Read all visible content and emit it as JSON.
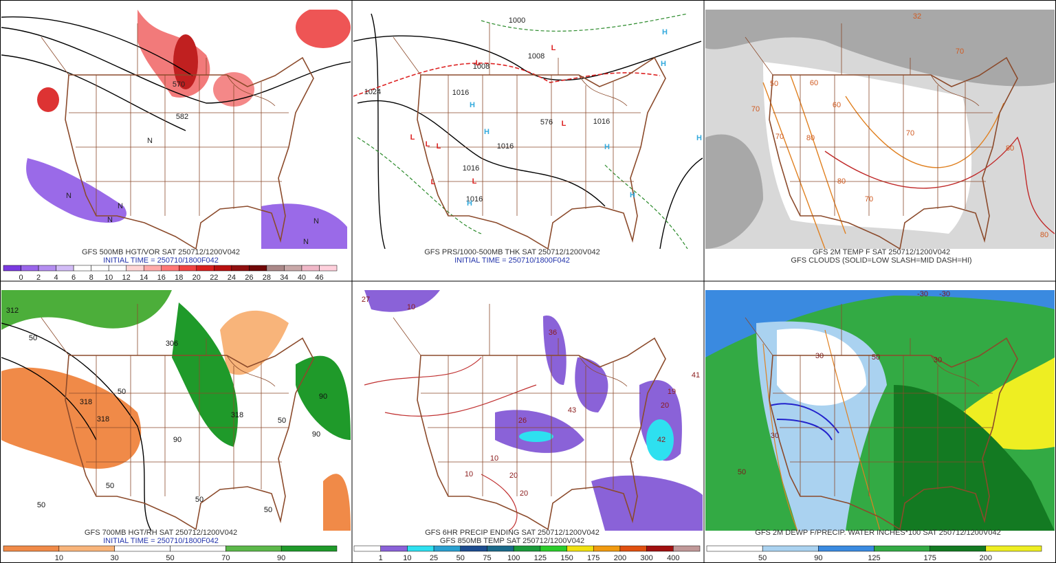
{
  "panels": [
    {
      "captions": [
        "GFS 500MB HGT/VOR SAT 250712/1200V042",
        "INITIAL TIME = 250710/1800F042"
      ],
      "colorbar": {
        "labels": [
          "0",
          "2",
          "4",
          "6",
          "8",
          "10",
          "12",
          "14",
          "16",
          "18",
          "20",
          "22",
          "24",
          "26",
          "28",
          "34",
          "40",
          "46"
        ],
        "colors": [
          "#7a3ae0",
          "#9a66ea",
          "#b48ef0",
          "#d2bcf6",
          "#ffffff",
          "#ffffff",
          "#ffffff",
          "#ffd6d6",
          "#ffaaaa",
          "#ff7777",
          "#f04444",
          "#d82020",
          "#b81010",
          "#901010",
          "#700808",
          "#aa8888",
          "#c8a8a8",
          "#f0b8c8",
          "#ffd0dc"
        ]
      },
      "map_labels": [
        "570",
        "582",
        "N",
        "N",
        "N",
        "N",
        "N",
        "N"
      ]
    },
    {
      "captions": [
        "GFS PRS/1000-500MB THK SAT 250712/1200V042",
        "INITIAL TIME = 250710/1800F042"
      ],
      "map_labels": [
        "1000",
        "1008",
        "1008",
        "1024",
        "1016",
        "1016",
        "1016",
        "1016",
        "1016",
        "576",
        "H",
        "H",
        "H",
        "H",
        "H",
        "H",
        "H",
        "H",
        "L",
        "L",
        "L",
        "L",
        "L",
        "L",
        "L",
        "L"
      ]
    },
    {
      "captions": [
        "GFS 2M TEMP F SAT 250712/1200V042",
        "GFS CLOUDS (SOLID=LOW SLASH=MID DASH=HI)"
      ],
      "map_labels": [
        "50",
        "60",
        "60",
        "70",
        "70",
        "80",
        "70",
        "80",
        "70",
        "80",
        "80",
        "70",
        "32"
      ]
    },
    {
      "captions": [
        "GFS 700MB HGT/RH SAT 250712/1200V042",
        "INITIAL TIME = 250710/1800F042"
      ],
      "colorbar": {
        "labels": [
          "10",
          "30",
          "50",
          "70",
          "90"
        ],
        "colors": [
          "#f08a48",
          "#f8b47a",
          "#ffffff",
          "#ffffff",
          "#5cb84a",
          "#1f9a2a"
        ]
      },
      "map_labels": [
        "312",
        "50",
        "306",
        "318",
        "318",
        "50",
        "318",
        "50",
        "90",
        "90",
        "90",
        "50",
        "50",
        "50",
        "50"
      ]
    },
    {
      "captions": [
        "GFS 6HR PRECIP ENDING SAT 250712/1200V042",
        "GFS 850MB TEMP SAT 250712/1200V042"
      ],
      "colorbar": {
        "labels": [
          "1",
          "10",
          "25",
          "50",
          "75",
          "100",
          "125",
          "150",
          "175",
          "200",
          "300",
          "400"
        ],
        "colors": [
          "#ffffff",
          "#8a62d8",
          "#2ee0f0",
          "#2aa0d0",
          "#1c4c90",
          "#1a6a8a",
          "#1a9a3a",
          "#2acc2a",
          "#f0e010",
          "#f09a10",
          "#e05010",
          "#a01010",
          "#c09898"
        ]
      },
      "map_labels": [
        "27",
        "10",
        "36",
        "43",
        "42",
        "41",
        "19",
        "20",
        "26",
        "10",
        "20",
        "20",
        "10"
      ]
    },
    {
      "captions": [
        "GFS 2M DEWP F/PRECIP. WATER INCHES*100 SAT 250712/1200V042"
      ],
      "colorbar": {
        "labels": [
          "50",
          "90",
          "125",
          "175",
          "200"
        ],
        "colors": [
          "#ffffff",
          "#aad2f0",
          "#3a8ae0",
          "#33aa44",
          "#137a22",
          "#eeee22"
        ]
      },
      "map_labels": [
        "-30",
        "-30",
        "30",
        "50",
        "50",
        "30",
        "30"
      ]
    }
  ]
}
